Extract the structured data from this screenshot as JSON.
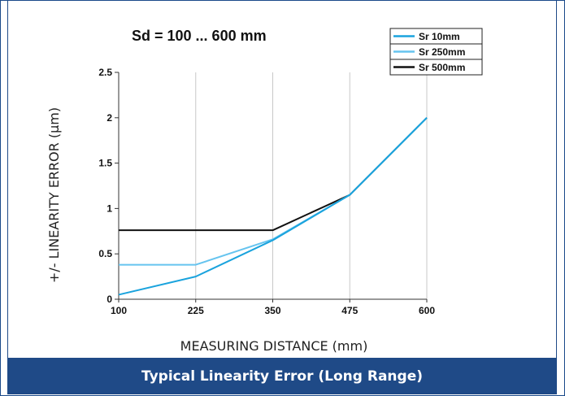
{
  "chart_data": {
    "type": "line",
    "subtitle": "Sd = 100 ... 600 mm",
    "xlabel": "MEASURING DISTANCE (mm)",
    "ylabel": "+/- LINEARITY ERROR (µm)",
    "x": [
      100,
      225,
      350,
      475,
      600
    ],
    "x_tick_labels": [
      "100",
      "225",
      "350",
      "475",
      "600"
    ],
    "y_ticks": [
      0,
      0.5,
      1,
      1.5,
      2,
      2.5
    ],
    "y_tick_labels": [
      "0",
      "0.5",
      "1",
      "1.5",
      "2",
      "2.5"
    ],
    "xlim": [
      100,
      600
    ],
    "ylim": [
      0,
      2.5
    ],
    "grid": "vertical",
    "legend_position": "top-right",
    "series": [
      {
        "name": "Sr 10mm",
        "color": "#1aa3dd",
        "values": [
          0.05,
          0.25,
          0.65,
          1.15,
          2.0
        ]
      },
      {
        "name": "Sr 250mm",
        "color": "#66c4ef",
        "values": [
          0.38,
          0.38,
          0.66,
          1.15,
          2.0
        ]
      },
      {
        "name": "Sr 500mm",
        "color": "#111111",
        "values": [
          0.76,
          0.76,
          0.76,
          1.15,
          2.0
        ]
      }
    ]
  },
  "caption": "Typical Linearity Error (Long Range)"
}
